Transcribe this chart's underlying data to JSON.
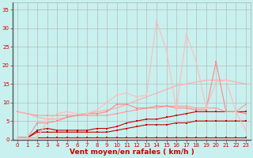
{
  "xlabel": "Vent moyen/en rafales ( km/h )",
  "background_color": "#c8f0ee",
  "grid_color": "#b0b0b0",
  "x_values": [
    0,
    1,
    2,
    3,
    4,
    5,
    6,
    7,
    8,
    9,
    10,
    11,
    12,
    13,
    14,
    15,
    16,
    17,
    18,
    19,
    20,
    21,
    22,
    23
  ],
  "series": [
    {
      "y": [
        0.5,
        0.5,
        0.5,
        0.5,
        0.5,
        0.5,
        0.5,
        0.5,
        0.5,
        0.5,
        0.5,
        0.5,
        0.5,
        0.5,
        0.5,
        0.5,
        0.5,
        0.5,
        0.5,
        0.5,
        0.5,
        0.5,
        0.5,
        0.5
      ],
      "color": "#cc0000",
      "lw": 0.8,
      "marker": "s",
      "ms": 2.0
    },
    {
      "y": [
        0.5,
        0.5,
        2.0,
        2.0,
        2.0,
        2.0,
        2.0,
        2.0,
        2.0,
        2.0,
        2.5,
        3.0,
        3.5,
        4.0,
        4.0,
        4.0,
        4.5,
        4.5,
        5.0,
        5.0,
        5.0,
        5.0,
        5.0,
        5.0
      ],
      "color": "#cc0000",
      "lw": 0.8,
      "marker": "s",
      "ms": 2.0
    },
    {
      "y": [
        0.5,
        0.5,
        2.5,
        3.0,
        2.5,
        2.5,
        2.5,
        2.5,
        3.0,
        3.0,
        3.5,
        4.5,
        5.0,
        5.5,
        5.5,
        6.0,
        6.5,
        7.0,
        7.5,
        7.5,
        7.5,
        7.5,
        7.5,
        7.5
      ],
      "color": "#cc0000",
      "lw": 0.8,
      "marker": "s",
      "ms": 2.0
    },
    {
      "y": [
        7.5,
        7.0,
        6.5,
        6.5,
        6.5,
        6.5,
        6.5,
        6.5,
        6.5,
        6.5,
        7.0,
        7.5,
        8.0,
        8.5,
        8.5,
        9.0,
        9.0,
        9.0,
        8.5,
        8.5,
        8.5,
        7.5,
        7.5,
        9.5
      ],
      "color": "#ff9999",
      "lw": 0.8,
      "marker": "s",
      "ms": 2.0
    },
    {
      "y": [
        7.5,
        7.0,
        6.0,
        5.5,
        5.5,
        6.0,
        6.5,
        7.0,
        7.5,
        8.0,
        8.5,
        9.5,
        10.5,
        11.5,
        12.5,
        13.5,
        14.5,
        15.0,
        15.5,
        16.0,
        16.0,
        16.0,
        15.5,
        15.0
      ],
      "color": "#ffaaaa",
      "lw": 0.8,
      "marker": null,
      "ms": 0
    },
    {
      "y": [
        0.5,
        0.5,
        4.5,
        4.5,
        5.0,
        6.0,
        6.5,
        7.0,
        7.0,
        7.5,
        9.5,
        9.5,
        8.5,
        8.5,
        9.0,
        9.0,
        8.5,
        8.5,
        8.0,
        8.0,
        21.0,
        7.5,
        7.5,
        7.0
      ],
      "color": "#ff8888",
      "lw": 0.8,
      "marker": "s",
      "ms": 2.0
    },
    {
      "y": [
        0.5,
        0.5,
        0.5,
        5.0,
        7.0,
        7.5,
        7.0,
        7.0,
        8.0,
        10.0,
        12.0,
        12.5,
        11.5,
        12.0,
        32.0,
        24.0,
        8.0,
        28.5,
        21.0,
        8.5,
        15.5,
        16.0,
        7.5,
        2.5
      ],
      "color": "#ffbbbb",
      "lw": 0.8,
      "marker": "s",
      "ms": 2.0
    }
  ],
  "ylim": [
    0,
    37
  ],
  "xlim": [
    -0.5,
    23.5
  ],
  "yticks": [
    0,
    5,
    10,
    15,
    20,
    25,
    30,
    35
  ],
  "xticks": [
    0,
    1,
    2,
    3,
    4,
    5,
    6,
    7,
    8,
    9,
    10,
    11,
    12,
    13,
    14,
    15,
    16,
    17,
    18,
    19,
    20,
    21,
    22,
    23
  ],
  "tick_color": "#cc0000",
  "tick_fontsize": 5.0,
  "xlabel_fontsize": 6.5,
  "label_color": "#cc0000"
}
